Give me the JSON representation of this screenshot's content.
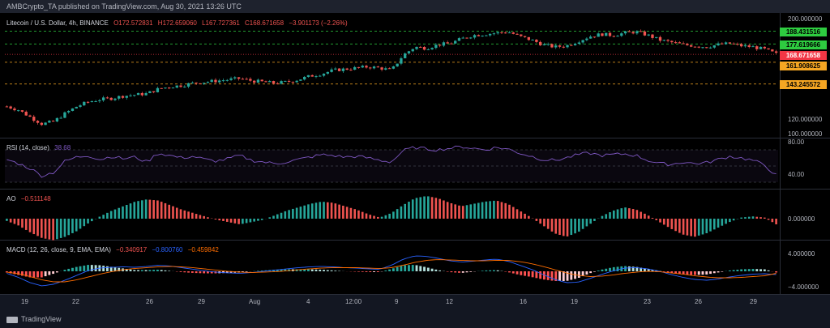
{
  "header": {
    "text": "AMBCrypto_TA published on TradingView.com, Aug 30, 2021 13:26 UTC"
  },
  "price_legend": {
    "symbol": "Litecoin / U.S. Dollar, 4h, BINANCE",
    "o": "O172.572831",
    "h": "H172.659060",
    "l": "L167.727361",
    "c": "C168.671658",
    "chg": "−3.901173 (−2.26%)"
  },
  "rsi_legend": {
    "label": "RSI (14, close)",
    "value": "38.68"
  },
  "ao_legend": {
    "label": "AO",
    "value": "−0.511148"
  },
  "macd_legend": {
    "label": "MACD (12, 26, close, 9, EMA, EMA)",
    "v1": "−0.340917",
    "v2": "−0.800760",
    "v3": "−0.459842"
  },
  "price_axis": {
    "ticks": [
      "200.000000",
      "120.000000",
      "100.000000"
    ]
  },
  "price_levels": [
    {
      "value": "188.431516",
      "color": "#2ecc40"
    },
    {
      "value": "177.619666",
      "color": "#2ecc40"
    },
    {
      "value": "168.671658",
      "color": "#f23645"
    },
    {
      "value": "161.908625",
      "color": "#f5a623"
    },
    {
      "value": "143.245572",
      "color": "#f5a623"
    }
  ],
  "rsi_axis": {
    "ticks": [
      "80.00",
      "40.00"
    ]
  },
  "ao_axis": {
    "ticks": [
      "0.000000"
    ]
  },
  "macd_axis": {
    "ticks": [
      "4.000000",
      "−4.000000"
    ]
  },
  "x_axis": {
    "labels": [
      "19",
      "22",
      "26",
      "29",
      "Aug",
      "4",
      "12:00",
      "9",
      "12",
      "16",
      "19",
      "23",
      "26",
      "29"
    ]
  },
  "footer": {
    "brand": "TradingView"
  },
  "colors": {
    "up": "#26a69a",
    "down": "#ef5350",
    "rsi": "#7e57c2",
    "macd": "#2962ff",
    "signal": "#ff6d00"
  },
  "chart_data": {
    "type": "candlestick",
    "ylim": [
      100,
      200
    ],
    "close_path": [
      124,
      121,
      115,
      109,
      111,
      118,
      124,
      128,
      130,
      131,
      133,
      134,
      135,
      139,
      141,
      142,
      144,
      145,
      146,
      147,
      148,
      146,
      145,
      144,
      145,
      147,
      150,
      152,
      155,
      156,
      157,
      158,
      157,
      155,
      168,
      175,
      174,
      177,
      178,
      182,
      185,
      186,
      187,
      188,
      184,
      181,
      177,
      175,
      176,
      180,
      184,
      186,
      185,
      187,
      188,
      185,
      181,
      179,
      177,
      176,
      175,
      177,
      178,
      176,
      175,
      173,
      169
    ],
    "rsi_path": [
      58,
      53,
      47,
      38,
      42,
      56,
      61,
      63,
      58,
      62,
      59,
      61,
      55,
      66,
      63,
      60,
      62,
      58,
      56,
      59,
      63,
      57,
      55,
      53,
      55,
      58,
      61,
      64,
      63,
      61,
      62,
      60,
      57,
      55,
      69,
      73,
      71,
      70,
      72,
      74,
      72,
      70,
      73,
      71,
      66,
      62,
      58,
      57,
      60,
      64,
      66,
      63,
      64,
      65,
      63,
      57,
      53,
      52,
      55,
      53,
      54,
      58,
      62,
      60,
      57,
      51,
      38.7
    ],
    "ao_hist": [
      -0.2,
      -0.6,
      -1.2,
      -1.7,
      -1.9,
      -1.6,
      -1.1,
      -0.4,
      0.2,
      0.7,
      1.1,
      1.5,
      1.7,
      1.6,
      1.2,
      0.8,
      0.5,
      0.2,
      -0.1,
      -0.3,
      -0.5,
      -0.3,
      -0.1,
      0.3,
      0.7,
      1.0,
      1.3,
      1.5,
      1.4,
      1.1,
      0.8,
      0.4,
      0.1,
      0.5,
      1.2,
      1.8,
      2.0,
      1.8,
      1.4,
      1.1,
      1.3,
      1.5,
      1.6,
      1.3,
      0.7,
      0.1,
      -0.6,
      -1.3,
      -1.6,
      -1.2,
      -0.5,
      0.2,
      0.7,
      1.0,
      0.8,
      0.3,
      -0.3,
      -0.9,
      -1.4,
      -1.6,
      -1.3,
      -0.8,
      -0.3,
      0.1,
      0.2,
      0.1,
      -0.5
    ],
    "macd_line": [
      -0.5,
      -1.5,
      -2.8,
      -3.6,
      -3.2,
      -2.2,
      -1.0,
      0.2,
      0.8,
      1.0,
      1.1,
      1.0,
      1.2,
      1.5,
      1.3,
      0.9,
      0.5,
      0.1,
      -0.2,
      -0.4,
      -0.5,
      -0.3,
      0.0,
      0.3,
      0.6,
      0.9,
      1.1,
      1.2,
      1.1,
      0.9,
      0.8,
      0.6,
      0.5,
      1.5,
      3.0,
      3.8,
      3.7,
      3.2,
      2.6,
      2.3,
      2.5,
      2.8,
      3.0,
      2.5,
      1.5,
      0.5,
      -0.8,
      -2.0,
      -2.8,
      -2.7,
      -1.8,
      -0.8,
      0.1,
      0.8,
      0.9,
      0.6,
      0.0,
      -0.8,
      -1.5,
      -2.0,
      -2.2,
      -1.9,
      -1.4,
      -1.0,
      -0.7,
      -0.6,
      -0.8
    ],
    "signal_line": [
      -0.2,
      -0.6,
      -1.3,
      -2.1,
      -2.6,
      -2.6,
      -2.1,
      -1.4,
      -0.7,
      -0.1,
      0.4,
      0.7,
      0.9,
      1.1,
      1.2,
      1.1,
      0.9,
      0.6,
      0.3,
      0.0,
      -0.2,
      -0.3,
      -0.2,
      -0.1,
      0.1,
      0.4,
      0.6,
      0.8,
      0.9,
      0.9,
      0.9,
      0.8,
      0.7,
      0.9,
      1.5,
      2.2,
      2.7,
      2.9,
      2.8,
      2.7,
      2.6,
      2.6,
      2.7,
      2.7,
      2.4,
      1.9,
      1.2,
      0.4,
      -0.4,
      -1.0,
      -1.3,
      -1.2,
      -0.9,
      -0.5,
      -0.2,
      0.0,
      -0.1,
      -0.4,
      -0.7,
      -1.1,
      -1.4,
      -1.6,
      -1.6,
      -1.5,
      -1.3,
      -1.1,
      -0.5
    ]
  }
}
